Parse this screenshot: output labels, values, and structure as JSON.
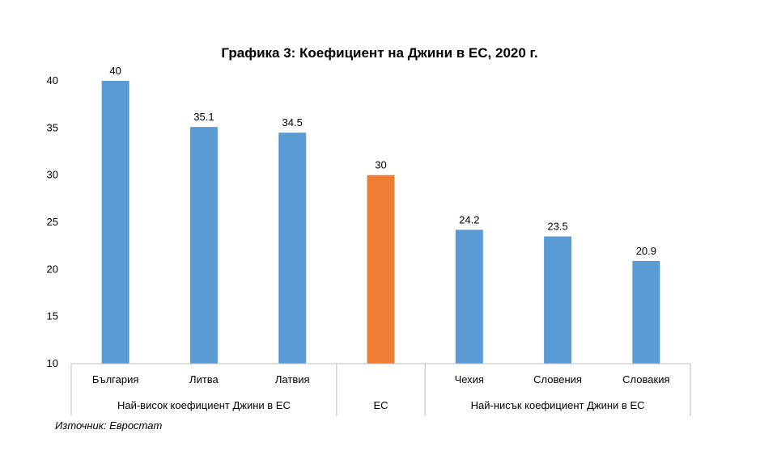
{
  "chart_data": {
    "type": "bar",
    "title": "Графика 3: Коефициент на Джини в ЕС, 2020 г.",
    "categories": [
      "България",
      "Литва",
      "Латвия",
      "",
      "Чехия",
      "Словения",
      "Словакия"
    ],
    "values": [
      40,
      35.1,
      34.5,
      30,
      24.2,
      23.5,
      20.9
    ],
    "data_labels": [
      "40",
      "35.1",
      "34.5",
      "30",
      "24.2",
      "23.5",
      "20.9"
    ],
    "bar_colors": [
      "#5b9bd5",
      "#5b9bd5",
      "#5b9bd5",
      "#ed7d31",
      "#5b9bd5",
      "#5b9bd5",
      "#5b9bd5"
    ],
    "groups": [
      {
        "label": "Най-висок коефициент Джини в ЕС",
        "span": [
          0,
          2
        ]
      },
      {
        "label": "ЕС",
        "span": [
          3,
          3
        ]
      },
      {
        "label": "Най-нисък коефициент Джини в ЕС",
        "span": [
          4,
          6
        ]
      }
    ],
    "ylim": [
      10,
      40
    ],
    "yticks": [
      "10",
      "15",
      "20",
      "25",
      "30",
      "35",
      "40"
    ],
    "xlabel": "",
    "ylabel": "",
    "grid": false,
    "legend": "none"
  },
  "source": "Източник: Евростат"
}
